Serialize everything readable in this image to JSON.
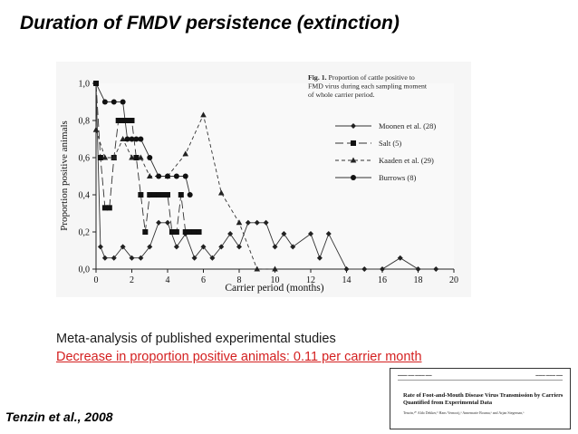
{
  "slide": {
    "title": "Duration of FMDV persistence (extinction)",
    "meta_analysis": "Meta-analysis of published experimental studies",
    "decrease": "Decrease in proportion positive animals: 0.11 per carrier month",
    "citation": "Tenzin et al., 2008"
  },
  "paper_thumbnail": {
    "title": "Rate of Foot-and-Mouth Disease Virus Transmission by Carriers Quantified from Experimental Data",
    "authors": "Tenzin,ᵃ* Aldo Dekker,ᵇ Hans Vernooij,ᵃ Annemarie Bouma,ᵃ and Arjan Stegeman,ᵃ"
  },
  "chart_data": {
    "type": "line",
    "caption": "Fig. 1.  Proportion of cattle positive to FMD virus during each sampling moment of whole carrier period.",
    "caption_lines": [
      "Fig. 1.  Proportion of cattle positive to",
      "FMD virus during each sampling moment",
      "of whole carrier period."
    ],
    "xlabel": "Carrier period (months)",
    "ylabel": "Proportion positive animals",
    "xlim": [
      0,
      20
    ],
    "ylim": [
      0,
      1.0
    ],
    "x_ticks": [
      0,
      2,
      4,
      6,
      8,
      10,
      12,
      14,
      16,
      18,
      20
    ],
    "y_ticks": [
      0.0,
      0.2,
      0.4,
      0.6,
      0.8,
      1.0
    ],
    "y_tick_labels": [
      "0,0",
      "0,2",
      "0,4",
      "0,6",
      "0,8",
      "1,0"
    ],
    "legend_position": "top-right",
    "grid": false,
    "series": [
      {
        "name": "Moonen et al. (28)",
        "dash": "solid",
        "marker": "diamond",
        "points": [
          [
            0,
            1.0
          ],
          [
            0.25,
            0.12
          ],
          [
            0.5,
            0.06
          ],
          [
            1,
            0.06
          ],
          [
            1.5,
            0.12
          ],
          [
            2,
            0.06
          ],
          [
            2.5,
            0.06
          ],
          [
            3,
            0.12
          ],
          [
            3.5,
            0.25
          ],
          [
            4,
            0.25
          ],
          [
            4.5,
            0.12
          ],
          [
            5,
            0.19
          ],
          [
            5.5,
            0.06
          ],
          [
            6,
            0.12
          ],
          [
            6.5,
            0.06
          ],
          [
            7,
            0.12
          ],
          [
            7.5,
            0.19
          ],
          [
            8,
            0.12
          ],
          [
            8.5,
            0.25
          ],
          [
            9,
            0.25
          ],
          [
            9.5,
            0.25
          ],
          [
            10,
            0.12
          ],
          [
            10.5,
            0.19
          ],
          [
            11,
            0.12
          ],
          [
            12,
            0.19
          ],
          [
            12.5,
            0.06
          ],
          [
            13,
            0.19
          ],
          [
            14,
            0.0
          ],
          [
            15,
            0.0
          ],
          [
            16,
            0.0
          ],
          [
            17,
            0.06
          ],
          [
            18,
            0.0
          ],
          [
            19,
            0.0
          ]
        ]
      },
      {
        "name": "Salt (5)",
        "dash": "long-dash",
        "marker": "square",
        "points": [
          [
            0,
            1.0
          ],
          [
            0.25,
            0.6
          ],
          [
            0.5,
            0.33
          ],
          [
            0.75,
            0.33
          ],
          [
            1,
            0.6
          ],
          [
            1.25,
            0.8
          ],
          [
            1.5,
            0.8
          ],
          [
            1.75,
            0.8
          ],
          [
            2,
            0.8
          ],
          [
            2.25,
            0.6
          ],
          [
            2.5,
            0.4
          ],
          [
            2.75,
            0.2
          ],
          [
            3,
            0.4
          ],
          [
            3.25,
            0.4
          ],
          [
            3.5,
            0.4
          ],
          [
            3.75,
            0.4
          ],
          [
            4,
            0.4
          ],
          [
            4.25,
            0.2
          ],
          [
            4.5,
            0.2
          ],
          [
            4.75,
            0.4
          ],
          [
            5,
            0.2
          ],
          [
            5.25,
            0.2
          ],
          [
            5.5,
            0.2
          ],
          [
            5.75,
            0.2
          ]
        ]
      },
      {
        "name": "Kaaden et al. (29)",
        "dash": "dashed",
        "marker": "triangle",
        "points": [
          [
            0,
            0.75
          ],
          [
            0.5,
            0.6
          ],
          [
            1,
            0.6
          ],
          [
            1.5,
            0.7
          ],
          [
            2,
            0.6
          ],
          [
            2.5,
            0.6
          ],
          [
            3,
            0.5
          ],
          [
            4,
            0.5
          ],
          [
            5,
            0.62
          ],
          [
            6,
            0.83
          ],
          [
            7,
            0.41
          ],
          [
            8,
            0.25
          ],
          [
            9,
            0.0
          ],
          [
            10,
            0.0
          ]
        ]
      },
      {
        "name": "Burrows (8)",
        "dash": "solid",
        "marker": "circle",
        "points": [
          [
            0,
            1.0
          ],
          [
            0.5,
            0.9
          ],
          [
            1,
            0.9
          ],
          [
            1.5,
            0.9
          ],
          [
            1.75,
            0.7
          ],
          [
            2,
            0.7
          ],
          [
            2.25,
            0.7
          ],
          [
            2.5,
            0.7
          ],
          [
            3,
            0.6
          ],
          [
            3.5,
            0.5
          ],
          [
            4,
            0.5
          ],
          [
            4.5,
            0.5
          ],
          [
            5,
            0.5
          ],
          [
            5.25,
            0.4
          ]
        ]
      }
    ]
  }
}
